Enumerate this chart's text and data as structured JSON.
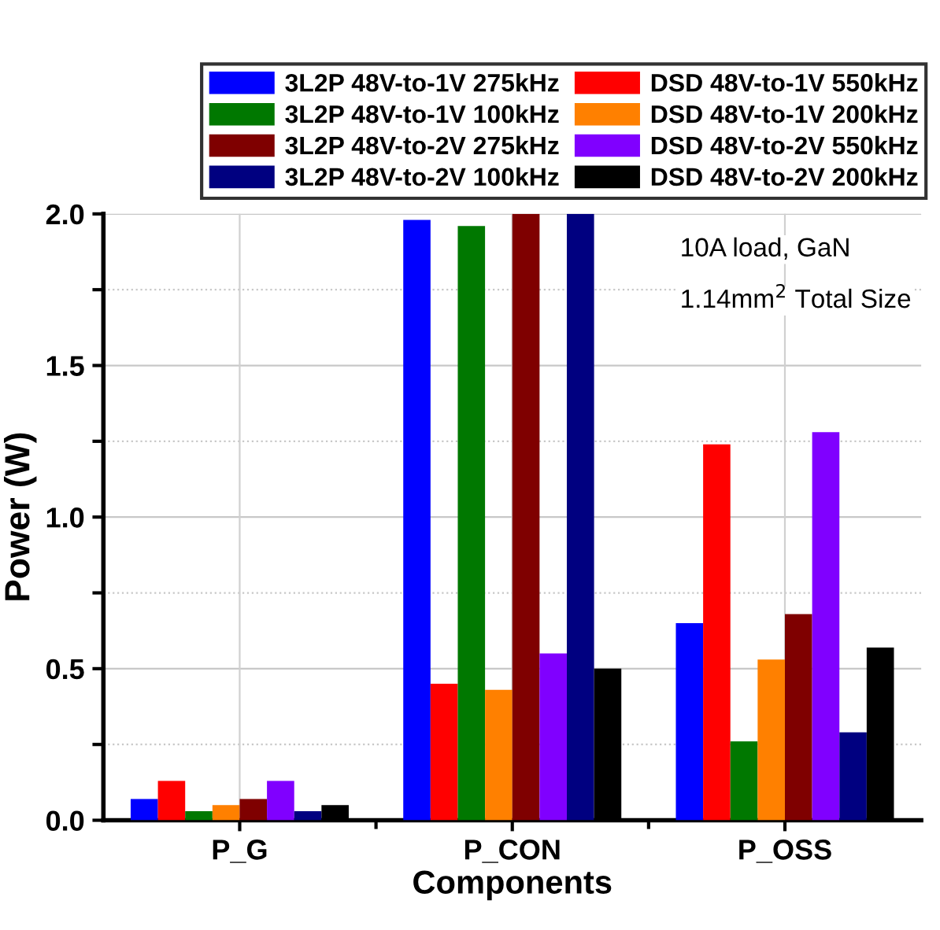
{
  "chart_data": {
    "type": "bar",
    "xlabel": "Components",
    "ylabel": "Power (W)",
    "categories": [
      "P_G",
      "P_CON",
      "P_OSS"
    ],
    "series": [
      {
        "name": "3L2P 48V-to-1V 275kHz",
        "color": "#0000ff",
        "values": [
          0.07,
          1.98,
          0.65
        ]
      },
      {
        "name": "DSD 48V-to-1V 550kHz",
        "color": "#ff0000",
        "values": [
          0.13,
          0.45,
          1.24
        ]
      },
      {
        "name": "3L2P 48V-to-1V 100kHz",
        "color": "#007800",
        "values": [
          0.03,
          1.96,
          0.26
        ]
      },
      {
        "name": "DSD 48V-to-1V 200kHz",
        "color": "#ff8000",
        "values": [
          0.05,
          0.43,
          0.53
        ]
      },
      {
        "name": "3L2P 48V-to-2V 275kHz",
        "color": "#7f0000",
        "values": [
          0.07,
          2.0,
          0.68
        ]
      },
      {
        "name": "DSD 48V-to-2V 550kHz",
        "color": "#8000ff",
        "values": [
          0.13,
          0.55,
          1.28
        ]
      },
      {
        "name": "3L2P 48V-to-2V 100kHz",
        "color": "#000080",
        "values": [
          0.03,
          2.0,
          0.29
        ]
      },
      {
        "name": "DSD 48V-to-2V 200kHz",
        "color": "#000000",
        "values": [
          0.05,
          0.5,
          0.57
        ]
      }
    ],
    "ylim": [
      0,
      2.0
    ],
    "yticks": [
      {
        "value": 0,
        "label": "0.0"
      },
      {
        "value": 0.25,
        "label": null
      },
      {
        "value": 0.5,
        "label": "0.5"
      },
      {
        "value": 0.75,
        "label": null
      },
      {
        "value": 1.0,
        "label": "1.0"
      },
      {
        "value": 1.25,
        "label": null
      },
      {
        "value": 1.5,
        "label": "1.5"
      },
      {
        "value": 1.75,
        "label": null
      },
      {
        "value": 2.0,
        "label": "2.0"
      }
    ],
    "grid": true,
    "legend": "top",
    "annotations": [
      "10A load, GaN",
      "1.14mm$^{2}$ Total Size"
    ]
  }
}
